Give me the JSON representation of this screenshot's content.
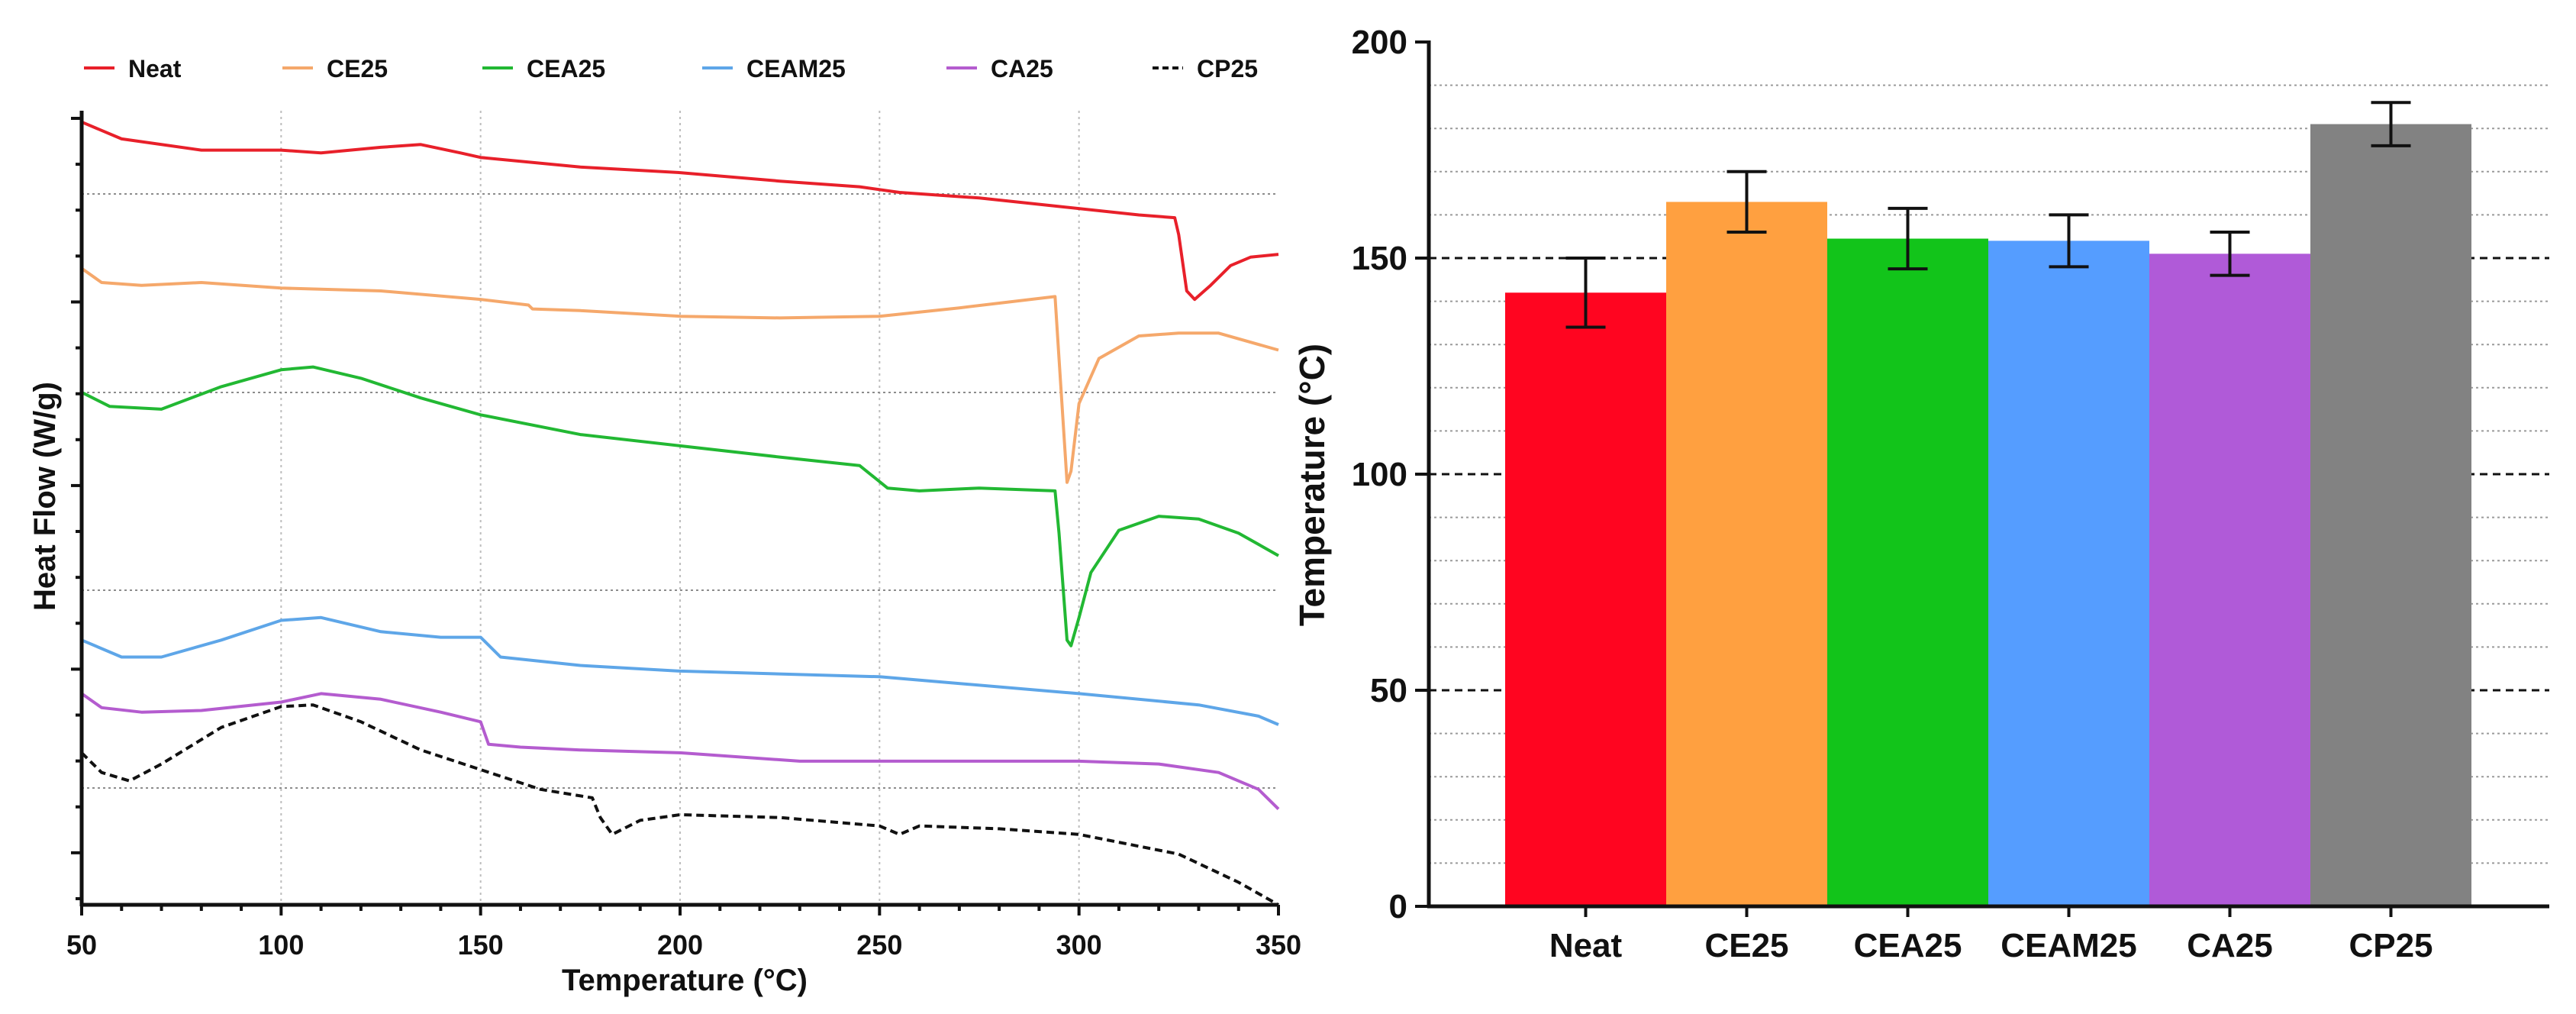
{
  "chart_data": [
    {
      "type": "line",
      "title": "",
      "xlabel": "Temperature (°C)",
      "ylabel": "Heat Flow (W/g)",
      "xlim": [
        50,
        350
      ],
      "x_ticks": [
        "50",
        "100",
        "150",
        "200",
        "250",
        "300",
        "350"
      ],
      "y_ticks_labeled": false,
      "grid": "dotted",
      "legend_position": "top",
      "series": [
        {
          "name": "Neat",
          "color": "#e8202a",
          "dash": "solid",
          "points": [
            [
              50,
              10.6
            ],
            [
              60,
              10.3
            ],
            [
              80,
              10.1
            ],
            [
              100,
              10.1
            ],
            [
              110,
              10.05
            ],
            [
              125,
              10.15
            ],
            [
              135,
              10.2
            ],
            [
              145,
              10.05
            ],
            [
              150,
              9.97
            ],
            [
              175,
              9.8
            ],
            [
              200,
              9.7
            ],
            [
              225,
              9.55
            ],
            [
              245,
              9.45
            ],
            [
              255,
              9.35
            ],
            [
              275,
              9.25
            ],
            [
              295,
              9.1
            ],
            [
              315,
              8.95
            ],
            [
              324,
              8.9
            ],
            [
              325,
              8.6
            ],
            [
              327,
              7.6
            ],
            [
              329,
              7.45
            ],
            [
              333,
              7.7
            ],
            [
              338,
              8.05
            ],
            [
              343,
              8.2
            ],
            [
              350,
              8.25
            ]
          ]
        },
        {
          "name": "CE25",
          "color": "#f5a86b",
          "dash": "solid",
          "points": [
            [
              50,
              8.0
            ],
            [
              55,
              7.75
            ],
            [
              65,
              7.7
            ],
            [
              80,
              7.75
            ],
            [
              100,
              7.65
            ],
            [
              125,
              7.6
            ],
            [
              150,
              7.45
            ],
            [
              162,
              7.35
            ],
            [
              163,
              7.28
            ],
            [
              175,
              7.25
            ],
            [
              200,
              7.15
            ],
            [
              225,
              7.12
            ],
            [
              250,
              7.15
            ],
            [
              270,
              7.3
            ],
            [
              294,
              7.5
            ],
            [
              295,
              6.4
            ],
            [
              297,
              4.2
            ],
            [
              298,
              4.4
            ],
            [
              300,
              5.6
            ],
            [
              305,
              6.4
            ],
            [
              315,
              6.8
            ],
            [
              325,
              6.85
            ],
            [
              335,
              6.85
            ],
            [
              350,
              6.55
            ]
          ]
        },
        {
          "name": "CEA25",
          "color": "#22b833",
          "dash": "solid",
          "points": [
            [
              50,
              5.8
            ],
            [
              57,
              5.55
            ],
            [
              70,
              5.5
            ],
            [
              85,
              5.9
            ],
            [
              100,
              6.2
            ],
            [
              108,
              6.25
            ],
            [
              120,
              6.05
            ],
            [
              135,
              5.7
            ],
            [
              150,
              5.4
            ],
            [
              175,
              5.05
            ],
            [
              200,
              4.85
            ],
            [
              225,
              4.65
            ],
            [
              245,
              4.5
            ],
            [
              252,
              4.1
            ],
            [
              260,
              4.05
            ],
            [
              275,
              4.1
            ],
            [
              294,
              4.05
            ],
            [
              295,
              3.3
            ],
            [
              297,
              1.4
            ],
            [
              298,
              1.3
            ],
            [
              300,
              1.8
            ],
            [
              303,
              2.6
            ],
            [
              310,
              3.35
            ],
            [
              320,
              3.6
            ],
            [
              330,
              3.55
            ],
            [
              340,
              3.3
            ],
            [
              350,
              2.9
            ]
          ]
        },
        {
          "name": "CEAM25",
          "color": "#5ea6e8",
          "dash": "solid",
          "points": [
            [
              50,
              1.4
            ],
            [
              60,
              1.1
            ],
            [
              70,
              1.1
            ],
            [
              85,
              1.4
            ],
            [
              100,
              1.75
            ],
            [
              110,
              1.8
            ],
            [
              125,
              1.55
            ],
            [
              140,
              1.45
            ],
            [
              150,
              1.45
            ],
            [
              155,
              1.1
            ],
            [
              175,
              0.95
            ],
            [
              200,
              0.85
            ],
            [
              250,
              0.75
            ],
            [
              300,
              0.45
            ],
            [
              330,
              0.25
            ],
            [
              345,
              0.05
            ],
            [
              350,
              -0.1
            ]
          ]
        },
        {
          "name": "CA25",
          "color": "#b45ccf",
          "dash": "solid",
          "points": [
            [
              50,
              0.45
            ],
            [
              55,
              0.2
            ],
            [
              65,
              0.12
            ],
            [
              80,
              0.15
            ],
            [
              100,
              0.3
            ],
            [
              110,
              0.45
            ],
            [
              125,
              0.35
            ],
            [
              140,
              0.12
            ],
            [
              150,
              -0.05
            ],
            [
              152,
              -0.45
            ],
            [
              160,
              -0.5
            ],
            [
              175,
              -0.55
            ],
            [
              200,
              -0.6
            ],
            [
              230,
              -0.75
            ],
            [
              250,
              -0.75
            ],
            [
              275,
              -0.75
            ],
            [
              300,
              -0.75
            ],
            [
              320,
              -0.8
            ],
            [
              335,
              -0.95
            ],
            [
              345,
              -1.25
            ],
            [
              350,
              -1.6
            ]
          ]
        },
        {
          "name": "CP25",
          "color": "#111111",
          "dash": "dashed",
          "points": [
            [
              50,
              -0.6
            ],
            [
              55,
              -0.95
            ],
            [
              62,
              -1.1
            ],
            [
              70,
              -0.8
            ],
            [
              85,
              -0.15
            ],
            [
              100,
              0.22
            ],
            [
              108,
              0.25
            ],
            [
              120,
              -0.05
            ],
            [
              135,
              -0.55
            ],
            [
              150,
              -0.9
            ],
            [
              165,
              -1.25
            ],
            [
              178,
              -1.4
            ],
            [
              180,
              -1.75
            ],
            [
              183,
              -2.05
            ],
            [
              190,
              -1.8
            ],
            [
              200,
              -1.7
            ],
            [
              225,
              -1.75
            ],
            [
              250,
              -1.9
            ],
            [
              255,
              -2.05
            ],
            [
              260,
              -1.9
            ],
            [
              280,
              -1.95
            ],
            [
              300,
              -2.05
            ],
            [
              325,
              -2.4
            ],
            [
              340,
              -2.9
            ],
            [
              350,
              -3.3
            ]
          ]
        }
      ]
    },
    {
      "type": "bar",
      "title": "",
      "xlabel": "",
      "ylabel": "Temperature (°C)",
      "ylim": [
        0,
        200
      ],
      "y_ticks": [
        "0",
        "50",
        "100",
        "150",
        "200"
      ],
      "grid": "dashed-major, dotted-minor",
      "categories": [
        "Neat",
        "CE25",
        "CEA25",
        "CEAM25",
        "CA25",
        "CP25"
      ],
      "values": [
        142,
        163,
        154.5,
        154,
        151,
        181
      ],
      "errors": [
        8,
        7,
        7,
        6,
        5,
        5
      ],
      "colors": [
        "#ff0520",
        "#ffa040",
        "#12c41a",
        "#559dff",
        "#b05ad8",
        "#828282"
      ]
    }
  ]
}
